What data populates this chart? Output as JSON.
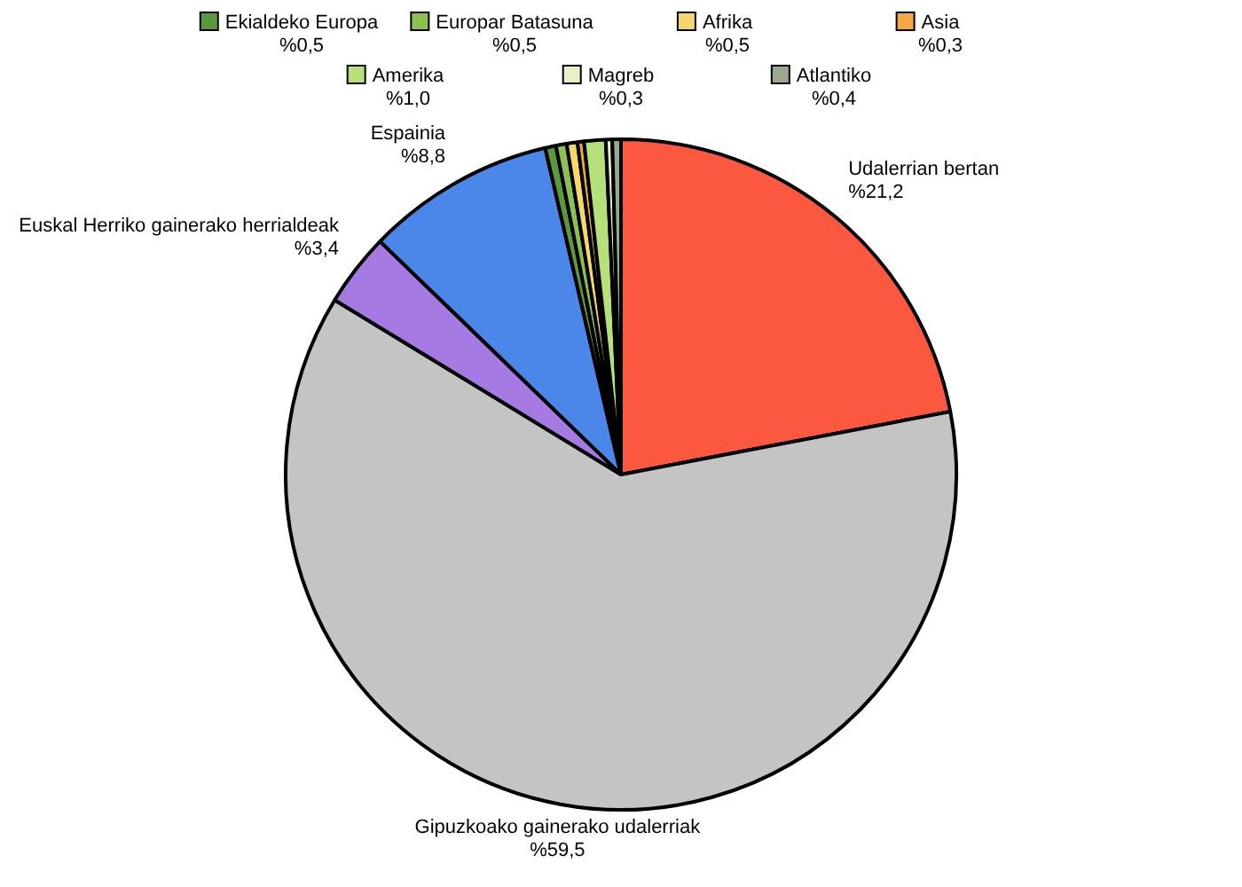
{
  "chart_data": {
    "type": "pie",
    "categories": [
      "Udalerrian bertan",
      "Gipuzkoako gainerako udalerriak",
      "Euskal Herriko gainerako herrialdeak",
      "Espainia",
      "Ekialdeko Europa",
      "Europar Batasuna",
      "Afrika",
      "Asia",
      "Amerika",
      "Magreb",
      "Atlantiko"
    ],
    "values": [
      21.2,
      59.5,
      3.4,
      8.8,
      0.5,
      0.5,
      0.5,
      0.3,
      1.0,
      0.3,
      0.4
    ],
    "legend": "top",
    "colors": [
      "#fc573f",
      "#c4c4c4",
      "#a57be3",
      "#4a87e8",
      "#5a9a3c",
      "#8cc152",
      "#f5d76e",
      "#f5a742",
      "#b6e07a",
      "#e8f0c8",
      "#9aa890"
    ],
    "value_labels": [
      "%21,2",
      "%59,5",
      "%3,4",
      "%8,8",
      "%0,5",
      "%0,5",
      "%0,5",
      "%0,3",
      "%1,0",
      "%0,3",
      "%0,4"
    ]
  }
}
